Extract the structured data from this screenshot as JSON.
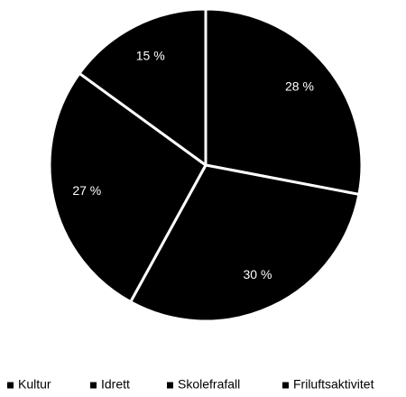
{
  "chart_data": {
    "type": "pie",
    "categories": [
      "Kultur",
      "Idrett",
      "Skolefrafall",
      "Friluftsaktivitet"
    ],
    "values": [
      28,
      30,
      27,
      15
    ],
    "value_labels": [
      "28 %",
      "30 %",
      "27 %",
      "15 %"
    ],
    "colors": [
      "#000000",
      "#000000",
      "#000000",
      "#000000"
    ],
    "legend": "bottom"
  }
}
